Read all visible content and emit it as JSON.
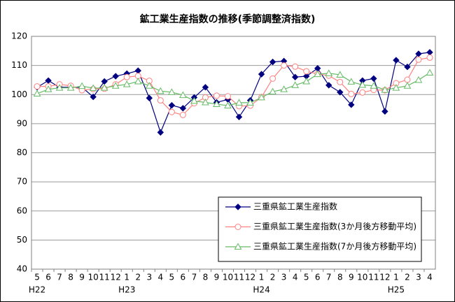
{
  "chart_data": {
    "type": "line",
    "title": "鉱工業生産指数の推移(季節調整済指数)",
    "categories": [
      "5",
      "6",
      "7",
      "8",
      "9",
      "10",
      "11",
      "12",
      "1",
      "2",
      "3",
      "4",
      "5",
      "6",
      "7",
      "8",
      "9",
      "10",
      "11",
      "12",
      "1",
      "2",
      "3",
      "4",
      "5",
      "6",
      "7",
      "8",
      "9",
      "10",
      "11",
      "12",
      "1",
      "2",
      "3",
      "4"
    ],
    "category_groups": [
      "H22",
      null,
      null,
      null,
      null,
      null,
      null,
      null,
      "H23",
      null,
      null,
      null,
      null,
      null,
      null,
      null,
      null,
      null,
      null,
      null,
      "H24",
      null,
      null,
      null,
      null,
      null,
      null,
      null,
      null,
      null,
      null,
      null,
      "H25",
      null,
      null,
      null
    ],
    "ylim": [
      40,
      120
    ],
    "yticks": [
      40,
      50,
      60,
      70,
      80,
      90,
      100,
      110,
      120
    ],
    "grid": true,
    "legend": "lower right",
    "series": [
      {
        "name": "三重県鉱工業生産指数",
        "color": "#000080",
        "marker": "diamond",
        "values": [
          102.5,
          104.8,
          102.5,
          102.5,
          102.5,
          99.2,
          104.5,
          106.3,
          107.2,
          108.2,
          98.8,
          87.0,
          96.3,
          95.3,
          99.0,
          102.5,
          97.3,
          98.3,
          92.3,
          98.0,
          107.0,
          111.2,
          111.5,
          106.0,
          106.3,
          109.0,
          103.2,
          100.8,
          96.5,
          104.8,
          105.5,
          94.2,
          111.8,
          109.5,
          114.0,
          114.5
        ]
      },
      {
        "name": "三重県鉱工業生産指数(3か月後方移動平均)",
        "color": "#ff8080",
        "marker": "circle",
        "values": [
          102.8,
          102.8,
          103.5,
          103.0,
          101.5,
          101.9,
          102.0,
          103.5,
          106.0,
          106.4,
          104.7,
          98.0,
          94.0,
          93.0,
          97.0,
          99.0,
          99.6,
          99.4,
          96.0,
          96.2,
          99.1,
          105.5,
          110.0,
          109.6,
          108.0,
          107.1,
          106.5,
          104.3,
          100.2,
          100.7,
          101.6,
          101.5,
          103.9,
          105.1,
          112.0,
          112.7
        ]
      },
      {
        "name": "三重県鉱工業生産指数(7か月後方移動平均)",
        "color": "#66bb66",
        "marker": "triangle",
        "values": [
          100.3,
          101.8,
          102.3,
          102.3,
          102.9,
          102.2,
          102.3,
          103.0,
          103.5,
          104.5,
          103.0,
          101.2,
          100.8,
          99.8,
          97.8,
          97.3,
          96.7,
          96.2,
          97.2,
          97.2,
          99.0,
          101.0,
          101.8,
          103.2,
          104.5,
          107.0,
          107.3,
          106.8,
          104.4,
          103.3,
          103.0,
          101.6,
          102.3,
          103.0,
          105.0,
          107.5
        ]
      }
    ]
  }
}
